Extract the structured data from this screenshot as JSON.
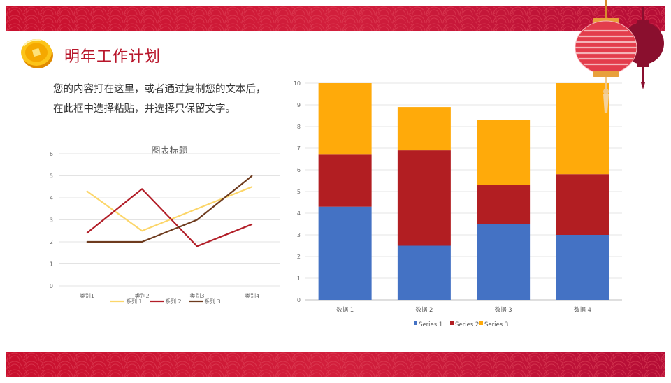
{
  "title": "明年工作计划",
  "body_lines": [
    "您的内容打在这里，或者通过复制您的文本后，",
    "在此框中选择粘贴，并选择只保留文字。"
  ],
  "colors": {
    "brand_red": "#b8152a",
    "band_red": "#c1122f"
  },
  "icons": [
    "coin-icon",
    "lantern-icon"
  ],
  "chart_data": [
    {
      "type": "line",
      "title": "图表标题",
      "categories": [
        "类别1",
        "类别2",
        "类别3",
        "类别4"
      ],
      "series": [
        {
          "name": "系列 1",
          "color": "#fcd66a",
          "values": [
            4.3,
            2.5,
            3.5,
            4.5
          ]
        },
        {
          "name": "系列 2",
          "color": "#b21e28",
          "values": [
            2.4,
            4.4,
            1.8,
            2.8
          ]
        },
        {
          "name": "系列 3",
          "color": "#6e3b1e",
          "values": [
            2.0,
            2.0,
            3.0,
            5.0
          ]
        }
      ],
      "ylim": [
        0,
        6
      ],
      "yticks": [
        "0",
        "1",
        "2",
        "3",
        "4",
        "5",
        "6"
      ],
      "grid": true,
      "legend": "bottom"
    },
    {
      "type": "bar",
      "stacked": true,
      "categories": [
        "数据 1",
        "数据 2",
        "数据 3",
        "数据 4"
      ],
      "series": [
        {
          "name": "Series 1",
          "color": "#4472c4",
          "values": [
            4.3,
            2.5,
            3.5,
            3.0
          ]
        },
        {
          "name": "Series 2",
          "color": "#b21e22",
          "values": [
            2.4,
            4.4,
            1.8,
            2.8
          ]
        },
        {
          "name": "Series 3",
          "color": "#ffaa0a",
          "values": [
            3.3,
            2.0,
            3.0,
            4.2
          ]
        }
      ],
      "ylim": [
        0,
        10
      ],
      "yticks": [
        "0",
        "1",
        "2",
        "3",
        "4",
        "5",
        "6",
        "7",
        "8",
        "9",
        "10"
      ],
      "grid": true,
      "legend": "bottom"
    }
  ]
}
